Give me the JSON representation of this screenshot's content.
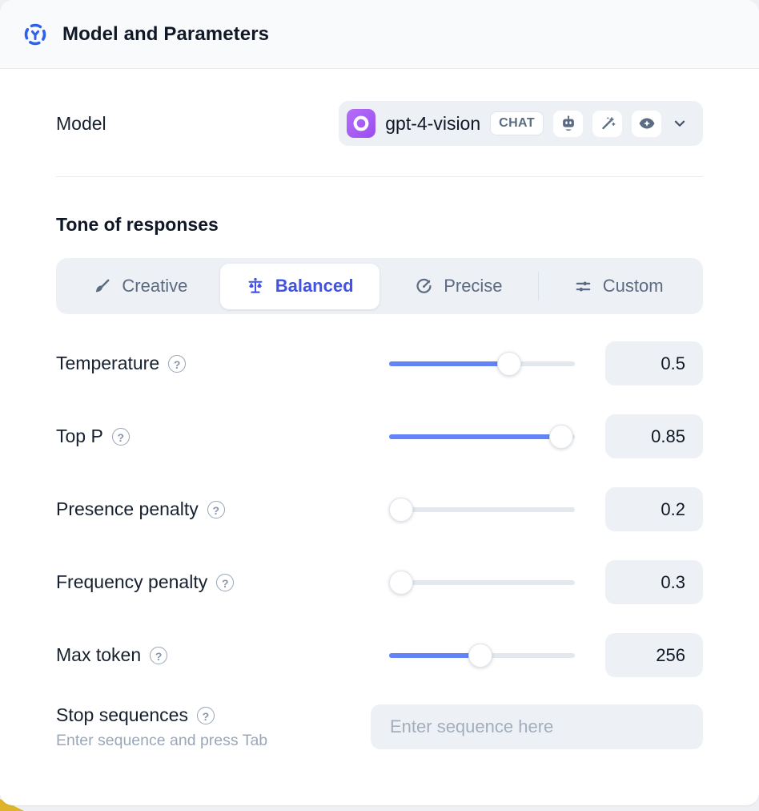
{
  "header": {
    "title": "Model and Parameters",
    "icon": "model-hub-icon"
  },
  "model_row": {
    "label": "Model",
    "selector": {
      "name": "gpt-4-vision",
      "badge": "CHAT",
      "provider_icon": "openai-logo",
      "capability_icons": [
        "robot-icon",
        "magic-wand-icon",
        "eye-icon"
      ],
      "expander_icon": "chevron-down-icon"
    }
  },
  "tone": {
    "heading": "Tone of responses",
    "options": [
      {
        "label": "Creative",
        "icon": "paintbrush-icon",
        "selected": false
      },
      {
        "label": "Balanced",
        "icon": "balance-scale-icon",
        "selected": true
      },
      {
        "label": "Precise",
        "icon": "target-arrow-icon",
        "selected": false
      },
      {
        "label": "Custom",
        "icon": "sliders-icon",
        "selected": false
      }
    ]
  },
  "params": [
    {
      "label": "Temperature",
      "value": "0.5",
      "fill_percent": 67
    },
    {
      "label": "Top P",
      "value": "0.85",
      "fill_percent": 99
    },
    {
      "label": "Presence penalty",
      "value": "0.2",
      "fill_percent": 0
    },
    {
      "label": "Frequency penalty",
      "value": "0.3",
      "fill_percent": 0
    },
    {
      "label": "Max token",
      "value": "256",
      "fill_percent": 49
    }
  ],
  "stop_sequences": {
    "label": "Stop sequences",
    "hint": "Enter sequence and press Tab",
    "placeholder": "Enter sequence here"
  },
  "colors": {
    "accent_selected": "#4053e6",
    "slider_fill": "#6384f9",
    "header_icon": "#2f62ea",
    "logo_purple": "#9a4cf0",
    "chip_background": "#edf0f5",
    "label_text": "#16202e",
    "muted_text": "#5b6b82",
    "corner_accent": "#dfb42c"
  }
}
